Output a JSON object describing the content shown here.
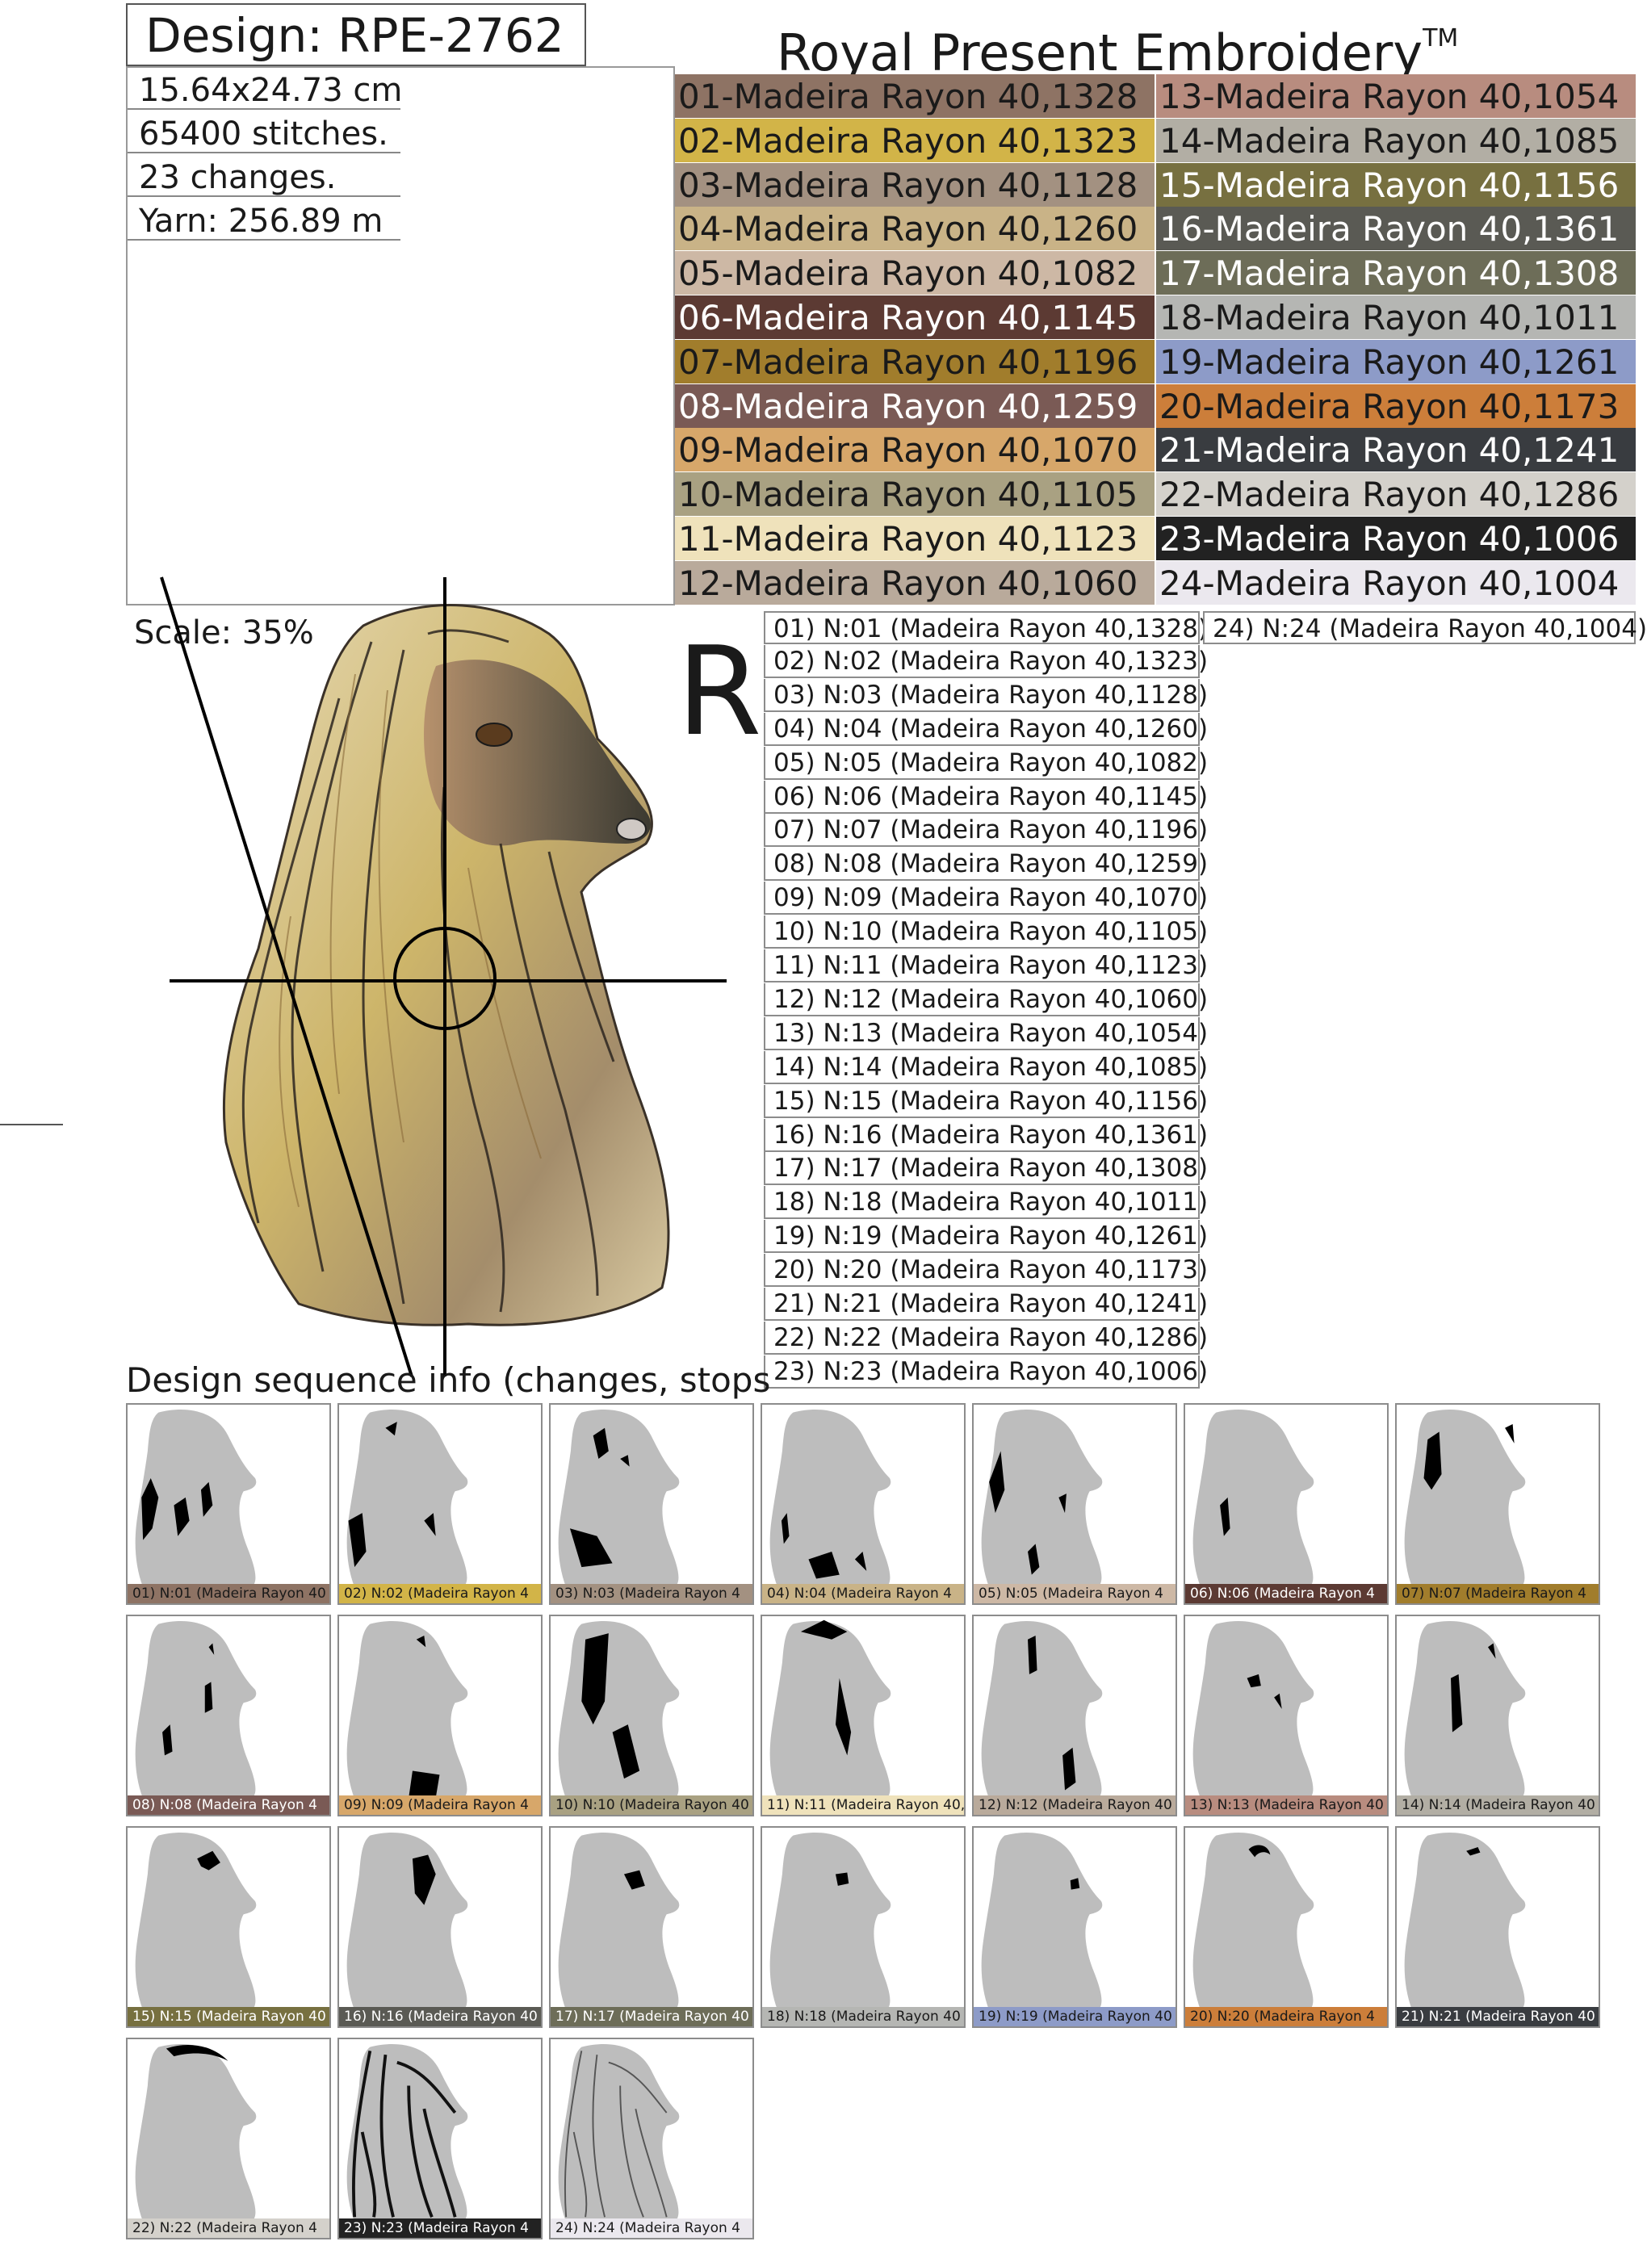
{
  "header": {
    "design_label": "Design: RPE-2762",
    "brand": "Royal Present Embroidery",
    "brand_tm": "TM"
  },
  "info": {
    "size": "15.64x24.73 cm",
    "stitches": "65400 stitches.",
    "changes": "23 changes.",
    "yarn": "Yarn: 256.89 m"
  },
  "palette": [
    {
      "label": "01-Madeira Rayon 40,1328",
      "color": "#8e7364",
      "text": "#1a1a1a"
    },
    {
      "label": "02-Madeira Rayon 40,1323",
      "color": "#d2b448",
      "text": "#1a1a1a"
    },
    {
      "label": "03-Madeira Rayon 40,1128",
      "color": "#a39181",
      "text": "#1a1a1a"
    },
    {
      "label": "04-Madeira Rayon 40,1260",
      "color": "#c9b387",
      "text": "#1a1a1a"
    },
    {
      "label": "05-Madeira Rayon 40,1082",
      "color": "#cdb8a5",
      "text": "#1a1a1a"
    },
    {
      "label": "06-Madeira Rayon 40,1145",
      "color": "#5c3a33",
      "text": "#ffffff"
    },
    {
      "label": "07-Madeira Rayon 40,1196",
      "color": "#a17d2c",
      "text": "#1a1a1a"
    },
    {
      "label": "08-Madeira Rayon 40,1259",
      "color": "#7a5a55",
      "text": "#ffffff"
    },
    {
      "label": "09-Madeira Rayon 40,1070",
      "color": "#d7a76a",
      "text": "#1a1a1a"
    },
    {
      "label": "10-Madeira Rayon 40,1105",
      "color": "#a9a182",
      "text": "#1a1a1a"
    },
    {
      "label": "11-Madeira Rayon 40,1123",
      "color": "#efe2bb",
      "text": "#1a1a1a"
    },
    {
      "label": "12-Madeira Rayon 40,1060",
      "color": "#b9aa9b",
      "text": "#1a1a1a"
    },
    {
      "label": "13-Madeira Rayon 40,1054",
      "color": "#b88c7f",
      "text": "#1a1a1a"
    },
    {
      "label": "14-Madeira Rayon 40,1085",
      "color": "#b2aea4",
      "text": "#1a1a1a"
    },
    {
      "label": "15-Madeira Rayon 40,1156",
      "color": "#777040",
      "text": "#ffffff"
    },
    {
      "label": "16-Madeira Rayon 40,1361",
      "color": "#5a5a54",
      "text": "#ffffff"
    },
    {
      "label": "17-Madeira Rayon 40,1308",
      "color": "#6d6d58",
      "text": "#ffffff"
    },
    {
      "label": "18-Madeira Rayon 40,1011",
      "color": "#b5b6b3",
      "text": "#1a1a1a"
    },
    {
      "label": "19-Madeira Rayon 40,1261",
      "color": "#8d9bc8",
      "text": "#1a1a1a"
    },
    {
      "label": "20-Madeira Rayon 40,1173",
      "color": "#cc7e3a",
      "text": "#1a1a1a"
    },
    {
      "label": "21-Madeira Rayon 40,1241",
      "color": "#393c40",
      "text": "#ffffff"
    },
    {
      "label": "22-Madeira Rayon 40,1286",
      "color": "#d4d1cb",
      "text": "#1a1a1a"
    },
    {
      "label": "23-Madeira Rayon 40,1006",
      "color": "#222222",
      "text": "#ffffff"
    },
    {
      "label": "24-Madeira Rayon 40,1004",
      "color": "#ebe8ee",
      "text": "#1a1a1a"
    }
  ],
  "preview": {
    "scale": "Scale: 35%",
    "r_mark": "R"
  },
  "sequence_list": [
    "01) N:01 (Madeira Rayon 40,1328)",
    "02) N:02 (Madeira Rayon 40,1323)",
    "03) N:03 (Madeira Rayon 40,1128)",
    "04) N:04 (Madeira Rayon 40,1260)",
    "05) N:05 (Madeira Rayon 40,1082)",
    "06) N:06 (Madeira Rayon 40,1145)",
    "07) N:07 (Madeira Rayon 40,1196)",
    "08) N:08 (Madeira Rayon 40,1259)",
    "09) N:09 (Madeira Rayon 40,1070)",
    "10) N:10 (Madeira Rayon 40,1105)",
    "11) N:11 (Madeira Rayon 40,1123)",
    "12) N:12 (Madeira Rayon 40,1060)",
    "13) N:13 (Madeira Rayon 40,1054)",
    "14) N:14 (Madeira Rayon 40,1085)",
    "15) N:15 (Madeira Rayon 40,1156)",
    "16) N:16 (Madeira Rayon 40,1361)",
    "17) N:17 (Madeira Rayon 40,1308)",
    "18) N:18 (Madeira Rayon 40,1011)",
    "19) N:19 (Madeira Rayon 40,1261)",
    "20) N:20 (Madeira Rayon 40,1173)",
    "21) N:21 (Madeira Rayon 40,1241)",
    "22) N:22 (Madeira Rayon 40,1286)",
    "23) N:23 (Madeira Rayon 40,1006)"
  ],
  "sequence_extra": "24) N:24 (Madeira Rayon 40,1004)",
  "sequence_title": "Design sequence info (changes, stops",
  "thumbnails": [
    "01) N:01 (Madeira Rayon 40",
    "02) N:02 (Madeira Rayon 4",
    "03) N:03 (Madeira Rayon 4",
    "04) N:04 (Madeira Rayon 4",
    "05) N:05 (Madeira Rayon 4",
    "06) N:06 (Madeira Rayon 4",
    "07) N:07 (Madeira Rayon 4",
    "08) N:08 (Madeira Rayon 4",
    "09) N:09 (Madeira Rayon 4",
    "10) N:10 (Madeira Rayon 40",
    "11) N:11 (Madeira Rayon 40,",
    "12) N:12 (Madeira Rayon 40",
    "13) N:13 (Madeira Rayon 40",
    "14) N:14 (Madeira Rayon 40",
    "15) N:15 (Madeira Rayon 40",
    "16) N:16 (Madeira Rayon 40",
    "17) N:17 (Madeira Rayon 40",
    "18) N:18 (Madeira Rayon 40",
    "19) N:19 (Madeira Rayon 40",
    "20) N:20 (Madeira Rayon 4",
    "21) N:21 (Madeira Rayon 40",
    "22) N:22 (Madeira Rayon 4",
    "23) N:23 (Madeira Rayon 4",
    "24) N:24 (Madeira Rayon 4"
  ]
}
